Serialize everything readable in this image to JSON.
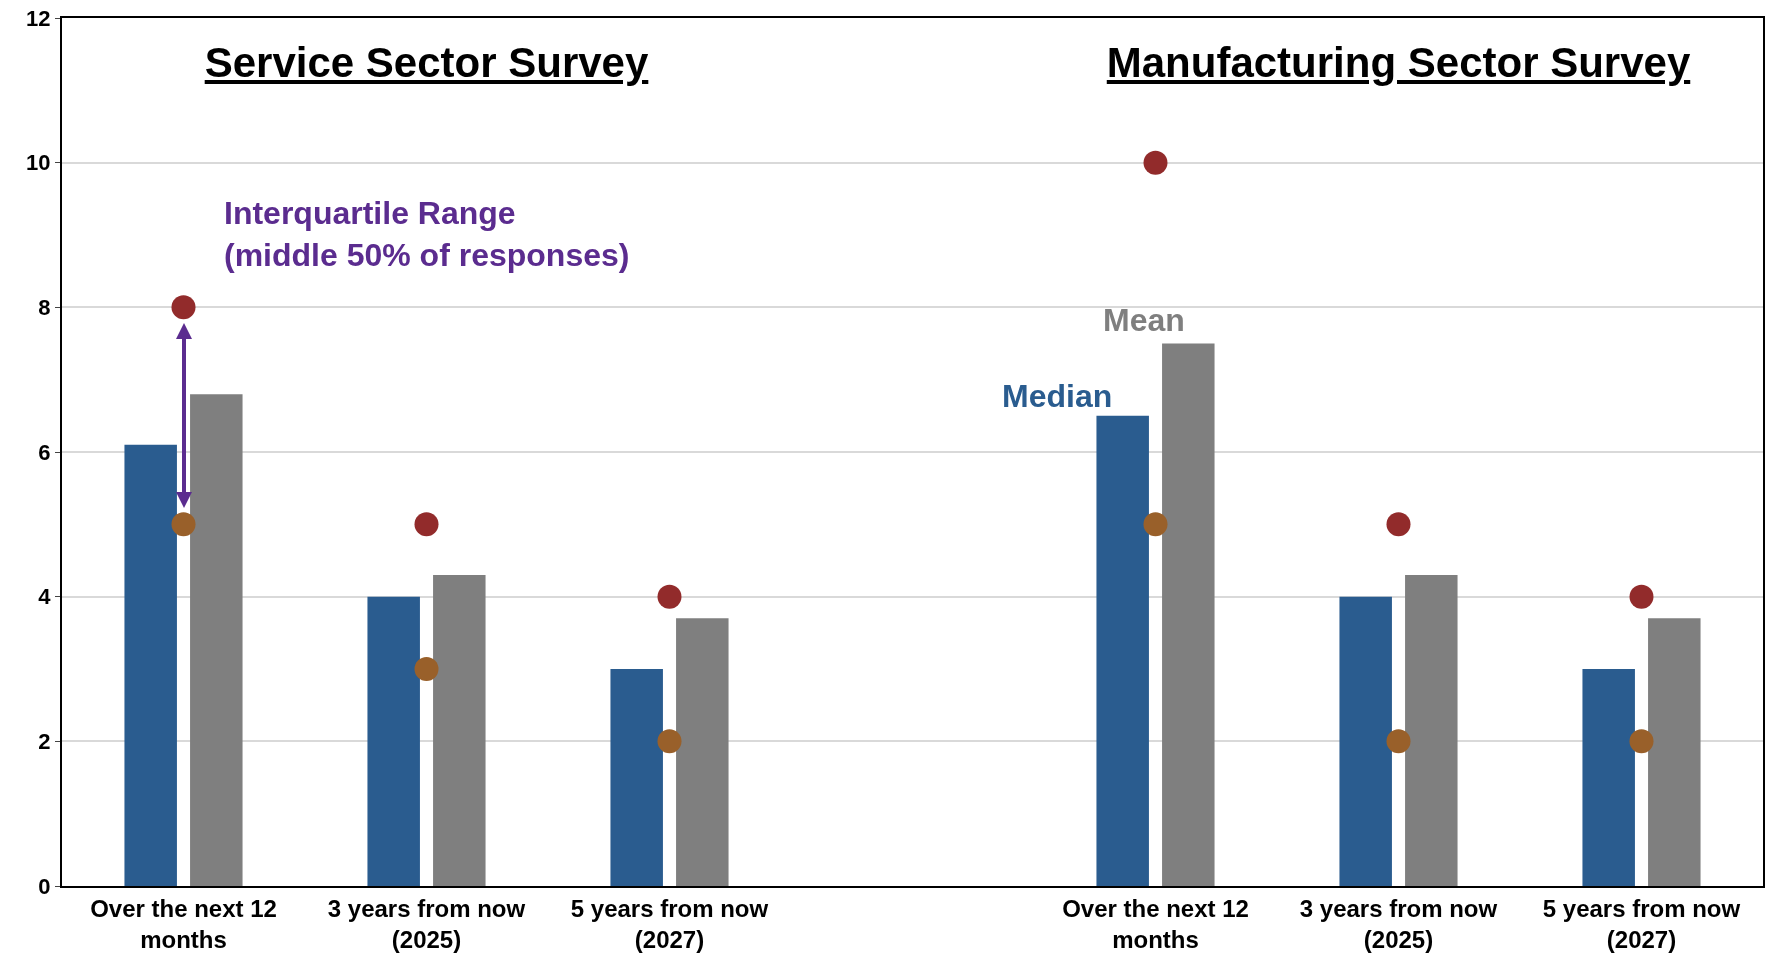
{
  "chart_data": {
    "type": "bar",
    "categories": [
      "Over the next 12 months",
      "3 years from now (2025)",
      "5 years from now (2027)",
      null,
      "Over the next 12 months",
      "3 years from now (2025)",
      "5 years from now (2027)"
    ],
    "series": [
      {
        "name": "Median",
        "color": "#2a5c8f",
        "values": [
          6.1,
          4,
          3,
          null,
          6.5,
          4,
          3
        ]
      },
      {
        "name": "Mean",
        "color": "#7f7f7f",
        "values": [
          6.8,
          4.3,
          3.7,
          null,
          7.5,
          4.3,
          3.7
        ]
      },
      {
        "type": "scatter",
        "color": "#922b2b",
        "values": [
          8,
          5,
          4,
          null,
          10,
          5,
          4
        ]
      },
      {
        "type": "scatter",
        "color": "#99602a",
        "values": [
          5,
          3,
          2,
          null,
          5,
          2,
          2
        ]
      }
    ],
    "annotations": [
      "Service Sector Survey",
      "Manufacturing Sector Survey",
      "Interquartile Range\n(middle 50% of responses)"
    ],
    "ylim": [
      0,
      12
    ],
    "yticks": [
      0,
      2,
      4,
      6,
      8,
      10,
      12
    ],
    "grid": "y",
    "legend": false,
    "marker": "circle"
  }
}
